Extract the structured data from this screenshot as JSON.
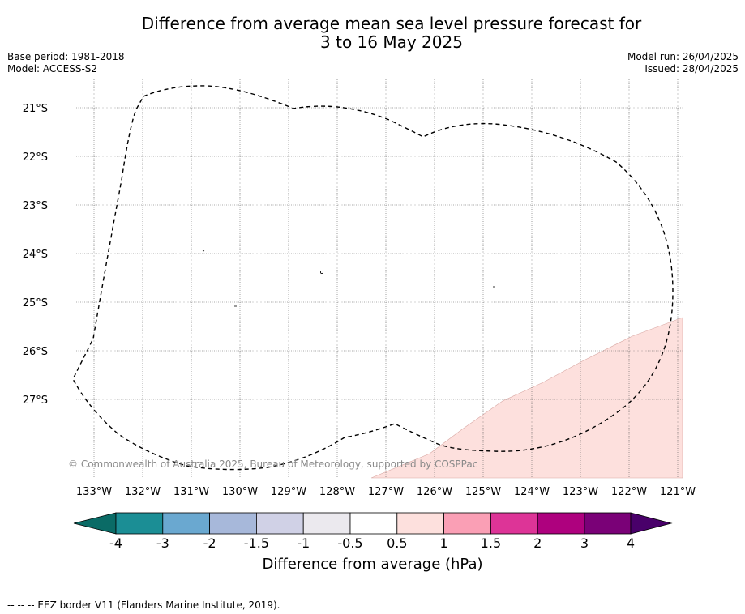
{
  "title": {
    "line1": "Difference from average mean sea level pressure forecast for",
    "line2": "3 to 16 May 2025"
  },
  "header_left": {
    "base_period": "Base period: 1981-2018",
    "model": "Model: ACCESS-S2"
  },
  "header_right": {
    "model_run": "Model run: 26/04/2025",
    "issued": "Issued: 28/04/2025"
  },
  "map": {
    "lat_labels": [
      "21°S",
      "22°S",
      "23°S",
      "24°S",
      "25°S",
      "26°S",
      "27°S"
    ],
    "lon_labels": [
      "133°W",
      "132°W",
      "131°W",
      "130°W",
      "129°W",
      "128°W",
      "127°W",
      "126°W",
      "125°W",
      "124°W",
      "123°W",
      "122°W",
      "121°W"
    ],
    "copyright": "© Commonwealth of Australia 2025, Bureau of Meteorology, supported by COSPPac",
    "anomaly_fill_color": "#fde0dd",
    "grid": true
  },
  "colorbar": {
    "ticks": [
      "-4",
      "-3",
      "-2",
      "-1.5",
      "-1",
      "-0.5",
      "0.5",
      "1",
      "1.5",
      "2",
      "3",
      "4"
    ],
    "colors": [
      "#0a6b66",
      "#1b8e95",
      "#6aa8d0",
      "#a7b8da",
      "#d0d1e6",
      "#ebe9ee",
      "#ffffff",
      "#fde0dd",
      "#fa9fb5",
      "#dd3497",
      "#ae017e",
      "#7a0177",
      "#49006a"
    ],
    "label": "Difference from average (hPa)"
  },
  "footnote": "--  --  -- EEZ border V11 (Flanders Marine Institute, 2019)."
}
